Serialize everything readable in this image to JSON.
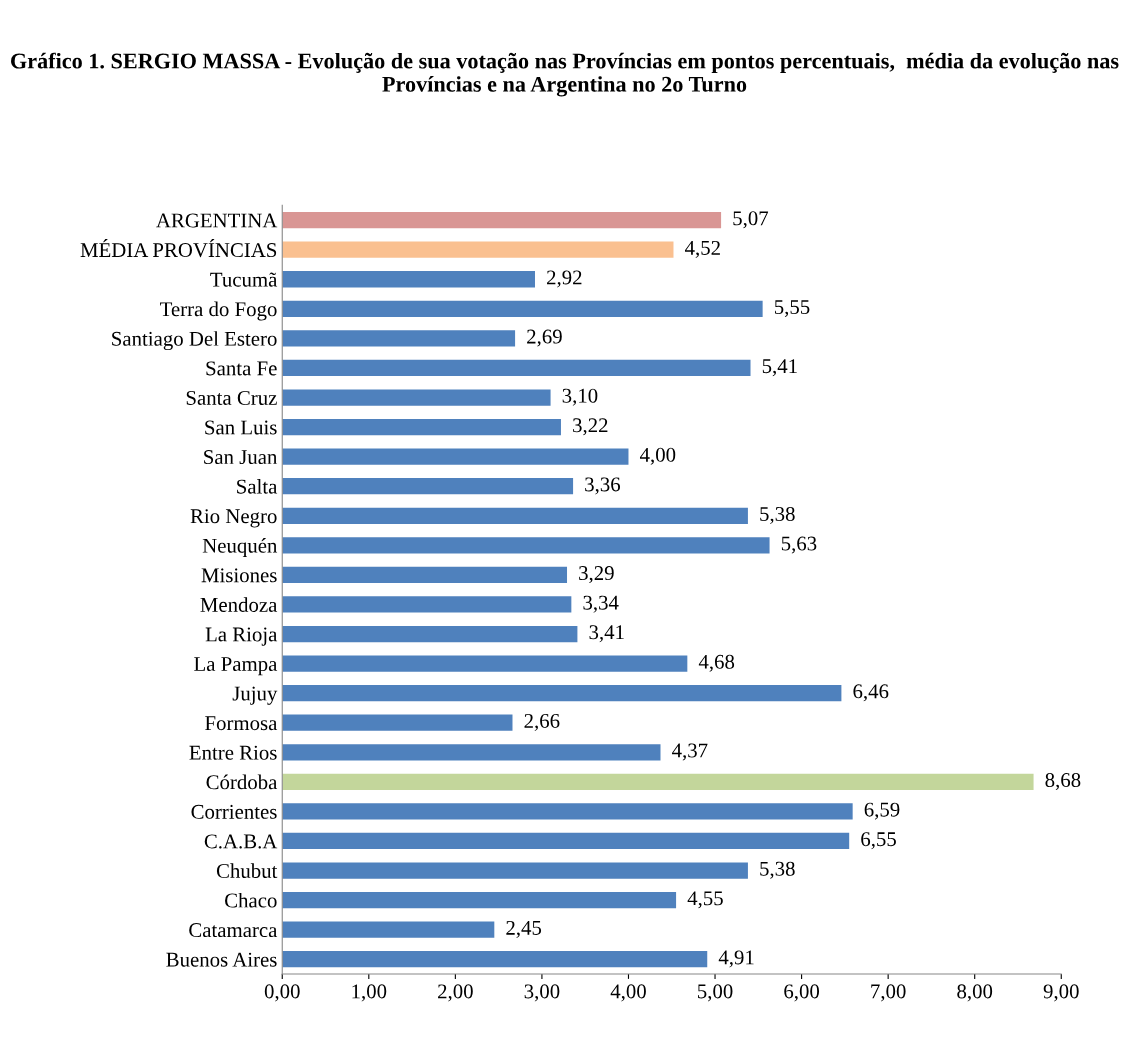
{
  "chart_data": {
    "type": "bar",
    "orientation": "horizontal",
    "title": "Gráfico 1. SERGIO MASSA - Evolução de sua votação nas Províncias em pontos percentuais,  média da evolução nas Províncias e na Argentina no 2o Turno",
    "categories": [
      "ARGENTINA",
      "MÉDIA PROVÍNCIAS",
      "Tucumã",
      "Terra do Fogo",
      "Santiago Del Estero",
      "Santa Fe",
      "Santa Cruz",
      "San Luis",
      "San Juan",
      "Salta",
      "Rio Negro",
      "Neuquén",
      "Misiones",
      "Mendoza",
      "La Rioja",
      "La Pampa",
      "Jujuy",
      "Formosa",
      "Entre Rios",
      "Córdoba",
      "Corrientes",
      "C.A.B.A",
      "Chubut",
      "Chaco",
      "Catamarca",
      "Buenos Aires"
    ],
    "values": [
      5.07,
      4.52,
      2.92,
      5.55,
      2.69,
      5.41,
      3.1,
      3.22,
      4.0,
      3.36,
      5.38,
      5.63,
      3.29,
      3.34,
      3.41,
      4.68,
      6.46,
      2.66,
      4.37,
      8.68,
      6.59,
      6.55,
      5.38,
      4.55,
      2.45,
      4.91
    ],
    "value_labels": [
      "5,07",
      "4,52",
      "2,92",
      "5,55",
      "2,69",
      "5,41",
      "3,10",
      "3,22",
      "4,00",
      "3,36",
      "5,38",
      "5,63",
      "3,29",
      "3,34",
      "3,41",
      "4,68",
      "6,46",
      "2,66",
      "4,37",
      "8,68",
      "6,59",
      "6,55",
      "5,38",
      "4,55",
      "2,45",
      "4,91"
    ],
    "colors": [
      "#d99694",
      "#fac090",
      "#4f81bd",
      "#4f81bd",
      "#4f81bd",
      "#4f81bd",
      "#4f81bd",
      "#4f81bd",
      "#4f81bd",
      "#4f81bd",
      "#4f81bd",
      "#4f81bd",
      "#4f81bd",
      "#4f81bd",
      "#4f81bd",
      "#4f81bd",
      "#4f81bd",
      "#4f81bd",
      "#4f81bd",
      "#c3d69b",
      "#4f81bd",
      "#4f81bd",
      "#4f81bd",
      "#4f81bd",
      "#4f81bd",
      "#4f81bd"
    ],
    "xlim": [
      0,
      9
    ],
    "xticks": [
      {
        "value": 0,
        "label": "0,00"
      },
      {
        "value": 1,
        "label": "1,00"
      },
      {
        "value": 2,
        "label": "2,00"
      },
      {
        "value": 3,
        "label": "3,00"
      },
      {
        "value": 4,
        "label": "4,00"
      },
      {
        "value": 5,
        "label": "5,00"
      },
      {
        "value": 6,
        "label": "6,00"
      },
      {
        "value": 7,
        "label": "7,00"
      },
      {
        "value": 8,
        "label": "8,00"
      },
      {
        "value": 9,
        "label": "9,00"
      }
    ],
    "grid": false,
    "legend": false
  }
}
